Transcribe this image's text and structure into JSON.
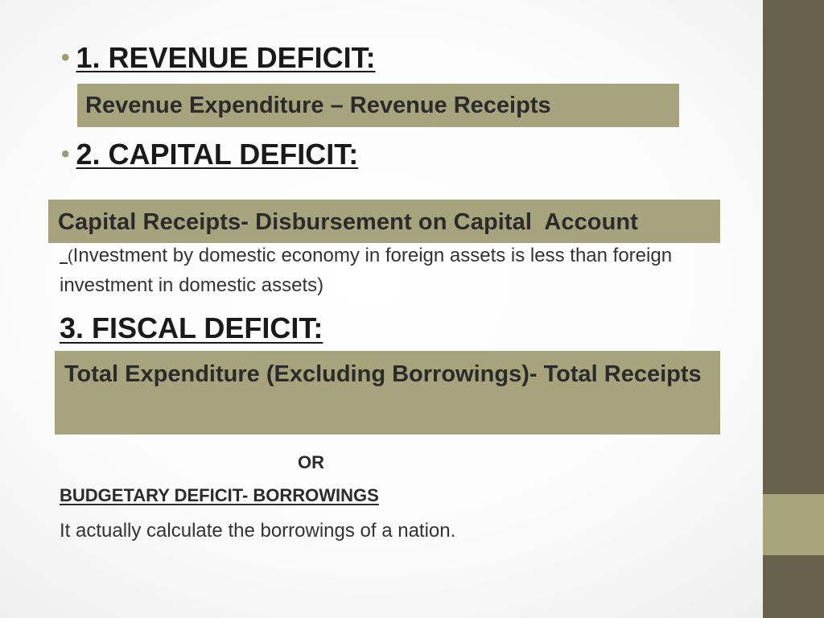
{
  "slide": {
    "sections": [
      {
        "bullet": "•",
        "heading": "1. REVENUE DEFICIT:",
        "formula": "Revenue Expenditure – Revenue Receipts"
      },
      {
        "bullet": "•",
        "heading": "2. CAPITAL DEFICIT:",
        "formula": "Capital Receipts- Disbursement on Capital  Account",
        "note_paren": "(",
        "note_text": "Investment by domestic economy in foreign assets is less than foreign investment in domestic assets)"
      },
      {
        "heading": "3. FISCAL DEFICIT:",
        "formula": "Total Expenditure (Excluding Borrowings)- Total Receipts"
      }
    ],
    "or_label": "OR",
    "budgetary": "BUDGETARY DEFICIT- BORROWINGS",
    "explanation": "It actually calculate the borrowings of a nation."
  },
  "colors": {
    "box": "#a7a37d",
    "right_bar": "#67604a",
    "right_bar_accent": "#a8a57c",
    "bullet": "#9c9a73"
  }
}
